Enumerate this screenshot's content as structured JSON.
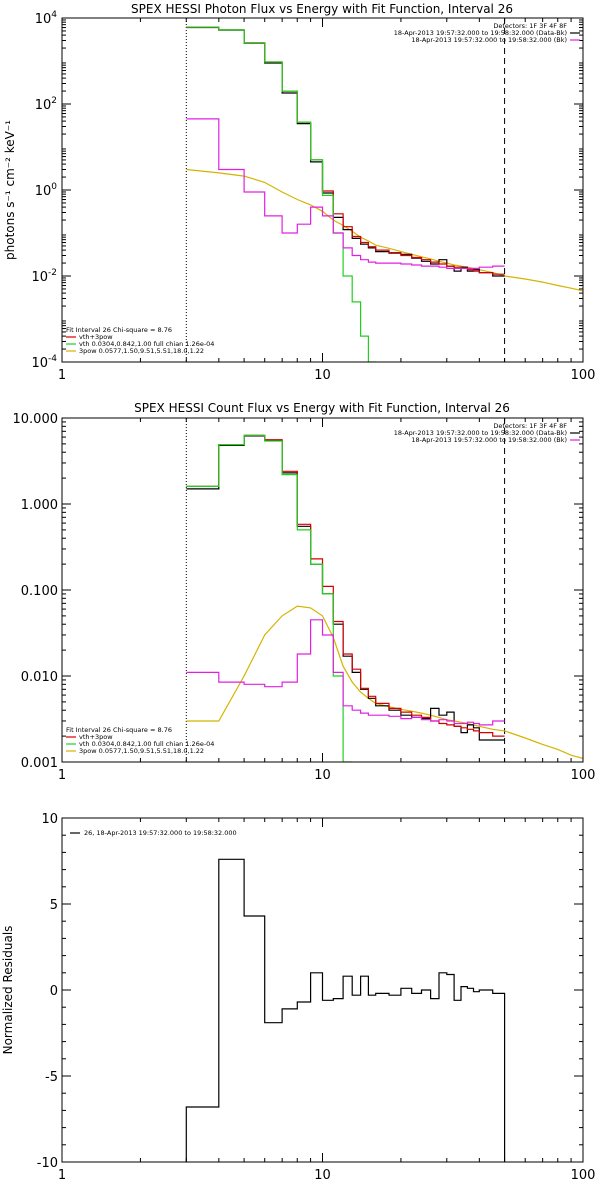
{
  "figure": {
    "colors": {
      "black": "#000000",
      "red": "#d40000",
      "green": "#20d020",
      "magenta": "#e020e0",
      "gold": "#d4b400"
    }
  },
  "chart_data": [
    {
      "type": "line",
      "title": "SPEX HESSI Photon Flux vs Energy with Fit Function, Interval 26",
      "xlabel": "",
      "ylabel": "photons s⁻¹ cm⁻² keV⁻¹",
      "xscale": "log",
      "yscale": "log",
      "xlim": [
        1,
        100
      ],
      "ylim": [
        0.0001,
        10000
      ],
      "xticks": [
        {
          "v": 1,
          "label": "1"
        },
        {
          "v": 10,
          "label": "10"
        },
        {
          "v": 100,
          "label": "100"
        }
      ],
      "yticks": [
        {
          "v": 0.0001,
          "base": "10",
          "exp": "-4"
        },
        {
          "v": 0.01,
          "base": "10",
          "exp": "-2"
        },
        {
          "v": 1,
          "base": "10",
          "exp": "0"
        },
        {
          "v": 100,
          "base": "10",
          "exp": "2"
        },
        {
          "v": 10000,
          "base": "10",
          "exp": "4"
        }
      ],
      "vlines": [
        {
          "x": 3,
          "style": "dotted"
        },
        {
          "x": 50,
          "style": "dashed"
        }
      ],
      "legend_topright": [
        "Detectors: 1F 3F 4F 8F",
        "18-Apr-2013 19:57:32.000 to 19:58:32.000 (Data-Bk)",
        "18-Apr-2013 19:57:32.000 to 19:58:32.000 (Bk)"
      ],
      "legend_bottomleft": [
        "Fit Interval 26   Chi-square = 8.76",
        "vth+3pow",
        "vth 0.0304,0.842,1.00  full chian 1.26e-04",
        "3pow 0.0577,1.50,9.51,5.51,18.0,1.22"
      ],
      "edges": [
        3,
        4,
        5,
        6,
        7,
        8,
        9,
        10,
        11,
        12,
        13,
        14,
        15,
        16,
        18,
        20,
        22,
        24,
        26,
        28,
        30,
        32,
        34,
        36,
        38,
        40,
        45,
        50
      ],
      "series": [
        {
          "name": "Data-Bk",
          "color": "black",
          "values": [
            6000,
            5200,
            2600,
            900,
            180,
            35,
            4.5,
            0.85,
            0.23,
            0.12,
            0.075,
            0.055,
            0.045,
            0.037,
            0.034,
            0.032,
            0.026,
            0.022,
            0.019,
            0.024,
            0.017,
            0.013,
            0.016,
            0.013,
            0.014,
            0.012,
            0.01
          ]
        },
        {
          "name": "vth+3pow",
          "color": "red",
          "values": [
            6100,
            5300,
            2650,
            950,
            200,
            38,
            5.0,
            0.95,
            0.28,
            0.14,
            0.083,
            0.06,
            0.048,
            0.04,
            0.035,
            0.03,
            0.027,
            0.024,
            0.021,
            0.019,
            0.017,
            0.016,
            0.015,
            0.014,
            0.013,
            0.012,
            0.011
          ]
        },
        {
          "name": "vth",
          "color": "green",
          "values": [
            6100,
            5300,
            2650,
            950,
            200,
            38,
            5.0,
            0.75,
            0.1,
            0.01,
            0.0025,
            0.0004,
            0.0001
          ]
        },
        {
          "name": "Bk",
          "color": "magenta",
          "values": [
            45,
            3,
            0.9,
            0.25,
            0.1,
            0.16,
            0.4,
            0.25,
            0.1,
            0.045,
            0.03,
            0.024,
            0.021,
            0.02,
            0.02,
            0.019,
            0.018,
            0.017,
            0.017,
            0.016,
            0.015,
            0.015,
            0.015,
            0.015,
            0.015,
            0.016,
            0.017
          ]
        }
      ],
      "model_line": {
        "name": "3pow",
        "color": "gold",
        "x": [
          3,
          4,
          5,
          6,
          7,
          8,
          9,
          10,
          11,
          12,
          13,
          14,
          15,
          16,
          18,
          20,
          22,
          24,
          26,
          28,
          30,
          32,
          34,
          36,
          38,
          40,
          45,
          50,
          60,
          70,
          80,
          90,
          100
        ],
        "y": [
          3,
          2.5,
          2.1,
          1.5,
          0.9,
          0.6,
          0.45,
          0.32,
          0.2,
          0.15,
          0.11,
          0.08,
          0.065,
          0.052,
          0.044,
          0.037,
          0.032,
          0.028,
          0.025,
          0.022,
          0.02,
          0.018,
          0.017,
          0.016,
          0.015,
          0.014,
          0.012,
          0.01,
          0.0085,
          0.0072,
          0.006,
          0.0052,
          0.0045
        ]
      }
    },
    {
      "type": "line",
      "title": "SPEX HESSI Count Flux vs Energy with Fit Function, Interval 26",
      "xlabel": "",
      "ylabel": "",
      "xscale": "log",
      "yscale": "log",
      "xlim": [
        1,
        100
      ],
      "ylim": [
        0.001,
        10
      ],
      "xticks": [
        {
          "v": 1,
          "label": "1"
        },
        {
          "v": 10,
          "label": "10"
        },
        {
          "v": 100,
          "label": "100"
        }
      ],
      "yticks": [
        {
          "v": 0.001,
          "label": "0.001"
        },
        {
          "v": 0.01,
          "label": "0.010"
        },
        {
          "v": 0.1,
          "label": "0.100"
        },
        {
          "v": 1,
          "label": "1.000"
        },
        {
          "v": 10,
          "label": "10.000"
        }
      ],
      "vlines": [
        {
          "x": 3,
          "style": "dotted"
        },
        {
          "x": 50,
          "style": "dashed"
        }
      ],
      "legend_topright": [
        "Detectors: 1F 3F 4F 8F",
        "18-Apr-2013 19:57:32.000 to 19:58:32.000 (Data-Bk)",
        "18-Apr-2013 19:57:32.000 to 19:58:32.000 (Bk)"
      ],
      "legend_bottomleft": [
        "Fit Interval 26   Chi-square = 8.76",
        "vth+3pow",
        "vth 0.0304,0.842,1.00  full chian 1.26e-04",
        "3pow 0.0577,1.50,9.51,5.51,18.0,1.22"
      ],
      "edges": [
        3,
        4,
        5,
        6,
        7,
        8,
        9,
        10,
        11,
        12,
        13,
        14,
        15,
        16,
        18,
        20,
        22,
        24,
        26,
        28,
        30,
        32,
        34,
        36,
        38,
        40,
        45,
        50
      ],
      "series": [
        {
          "name": "Data-Bk",
          "color": "black",
          "values": [
            1.5,
            4.8,
            6.2,
            5.5,
            2.3,
            0.55,
            0.2,
            0.09,
            0.04,
            0.017,
            0.011,
            0.007,
            0.0055,
            0.0045,
            0.004,
            0.0035,
            0.0033,
            0.0032,
            0.0042,
            0.0035,
            0.0038,
            0.0026,
            0.0022,
            0.0027,
            0.0025,
            0.0018,
            0.0018
          ]
        },
        {
          "name": "vth+3pow",
          "color": "red",
          "values": [
            1.6,
            4.9,
            6.3,
            5.6,
            2.4,
            0.58,
            0.23,
            0.11,
            0.043,
            0.018,
            0.012,
            0.0072,
            0.0058,
            0.0048,
            0.0042,
            0.0038,
            0.0035,
            0.0033,
            0.003,
            0.0028,
            0.0027,
            0.0026,
            0.0025,
            0.0024,
            0.0023,
            0.0022,
            0.002
          ]
        },
        {
          "name": "vth",
          "color": "green",
          "values": [
            1.6,
            4.9,
            6.3,
            5.4,
            2.2,
            0.5,
            0.2,
            0.09,
            0.01,
            0.001
          ]
        },
        {
          "name": "Bk",
          "color": "magenta",
          "values": [
            0.011,
            0.0085,
            0.008,
            0.0075,
            0.0085,
            0.018,
            0.045,
            0.03,
            0.011,
            0.0045,
            0.004,
            0.0037,
            0.0035,
            0.0035,
            0.0034,
            0.0032,
            0.0033,
            0.0031,
            0.003,
            0.0031,
            0.003,
            0.0028,
            0.0028,
            0.0029,
            0.0028,
            0.0027,
            0.003
          ]
        }
      ],
      "model_line": {
        "name": "3pow",
        "color": "gold",
        "x": [
          3,
          4,
          5,
          6,
          7,
          8,
          9,
          10,
          11,
          12,
          13,
          14,
          15,
          16,
          18,
          20,
          22,
          24,
          26,
          28,
          30,
          32,
          34,
          36,
          38,
          40,
          45,
          50,
          60,
          70,
          80,
          90,
          100
        ],
        "y": [
          0.003,
          0.003,
          0.01,
          0.03,
          0.05,
          0.065,
          0.062,
          0.05,
          0.028,
          0.013,
          0.0085,
          0.0065,
          0.0055,
          0.0048,
          0.0044,
          0.0041,
          0.0039,
          0.0037,
          0.0035,
          0.0033,
          0.0031,
          0.003,
          0.0029,
          0.0028,
          0.0027,
          0.0026,
          0.0024,
          0.0023,
          0.0019,
          0.0016,
          0.0014,
          0.0012,
          0.0011
        ]
      }
    },
    {
      "type": "line",
      "title": "",
      "xlabel": "",
      "ylabel": "Normalized Residuals",
      "xscale": "log",
      "yscale": "linear",
      "xlim": [
        1,
        100
      ],
      "ylim": [
        -10,
        10
      ],
      "xticks": [
        {
          "v": 1,
          "label": "1"
        },
        {
          "v": 10,
          "label": "10"
        },
        {
          "v": 100,
          "label": "100"
        }
      ],
      "yticks": [
        {
          "v": -10,
          "label": "-10"
        },
        {
          "v": -5,
          "label": "-5"
        },
        {
          "v": 0,
          "label": "0"
        },
        {
          "v": 5,
          "label": "5"
        },
        {
          "v": 10,
          "label": "10"
        }
      ],
      "vlines": [],
      "legend_topleft": [
        "26, 18-Apr-2013 19:57:32.000 to 19:58:32.000"
      ],
      "edges": [
        3,
        4,
        5,
        6,
        7,
        8,
        9,
        10,
        11,
        12,
        13,
        14,
        15,
        16,
        18,
        20,
        22,
        24,
        26,
        28,
        30,
        32,
        34,
        36,
        38,
        40,
        45,
        50
      ],
      "series": [
        {
          "name": "26, 18-Apr-2013 19:57:32.000 to 19:58:32.000",
          "color": "black",
          "values": [
            -6.8,
            7.6,
            4.3,
            -1.9,
            -1.1,
            -0.7,
            1.0,
            -0.6,
            -0.5,
            0.8,
            -0.3,
            0.8,
            -0.3,
            -0.2,
            -0.3,
            0.1,
            -0.2,
            0.0,
            -0.5,
            1.0,
            0.9,
            -0.6,
            0.2,
            0.1,
            -0.1,
            0.0,
            -0.2
          ]
        }
      ]
    }
  ]
}
